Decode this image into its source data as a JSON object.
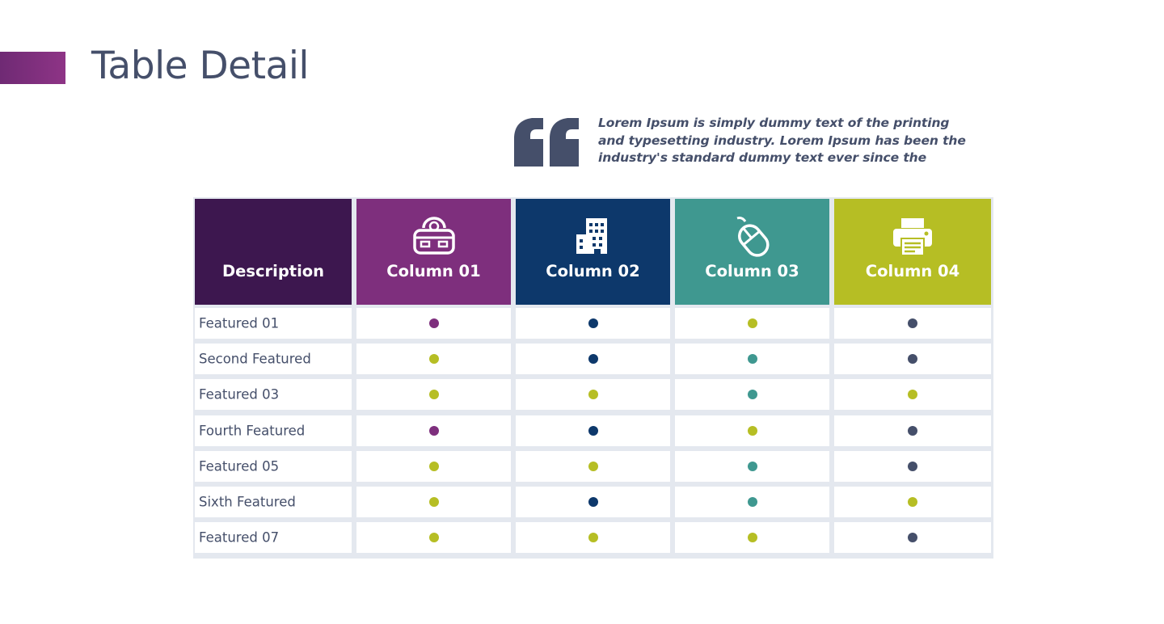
{
  "slide": {
    "title": "Table Detail",
    "accent_color": "#7e2f7d",
    "quote_icon": "quote-open-icon",
    "quote_text": "Lorem Ipsum is simply dummy text of the printing and typesetting industry. Lorem Ipsum has been the industry's standard dummy text ever since the"
  },
  "table": {
    "header": {
      "description_label": "Description",
      "description_color": "#3d174f",
      "columns": [
        {
          "label": "Column 01",
          "icon": "cash-register-icon",
          "color": "#7e2f7d"
        },
        {
          "label": "Column 02",
          "icon": "building-icon",
          "color": "#0d386b"
        },
        {
          "label": "Column 03",
          "icon": "mouse-icon",
          "color": "#3f9890"
        },
        {
          "label": "Column 04",
          "icon": "printer-icon",
          "color": "#b6be24"
        }
      ]
    },
    "dot_colors": {
      "purple": "#7e2f7d",
      "navy": "#0d386b",
      "teal": "#3f9890",
      "lime": "#b6be24",
      "slate": "#454f6a"
    },
    "rows": [
      {
        "label": "Featured 01",
        "dots": [
          "purple",
          "navy",
          "lime",
          "slate"
        ]
      },
      {
        "label": "Second Featured",
        "dots": [
          "lime",
          "navy",
          "teal",
          "slate"
        ]
      },
      {
        "label": "Featured 03",
        "dots": [
          "lime",
          "lime",
          "teal",
          "lime"
        ]
      },
      {
        "label": "Fourth Featured",
        "dots": [
          "purple",
          "navy",
          "lime",
          "slate"
        ]
      },
      {
        "label": "Featured 05",
        "dots": [
          "lime",
          "lime",
          "teal",
          "slate"
        ]
      },
      {
        "label": "Sixth Featured",
        "dots": [
          "lime",
          "navy",
          "teal",
          "lime"
        ]
      },
      {
        "label": "Featured 07",
        "dots": [
          "lime",
          "lime",
          "lime",
          "slate"
        ]
      }
    ]
  }
}
